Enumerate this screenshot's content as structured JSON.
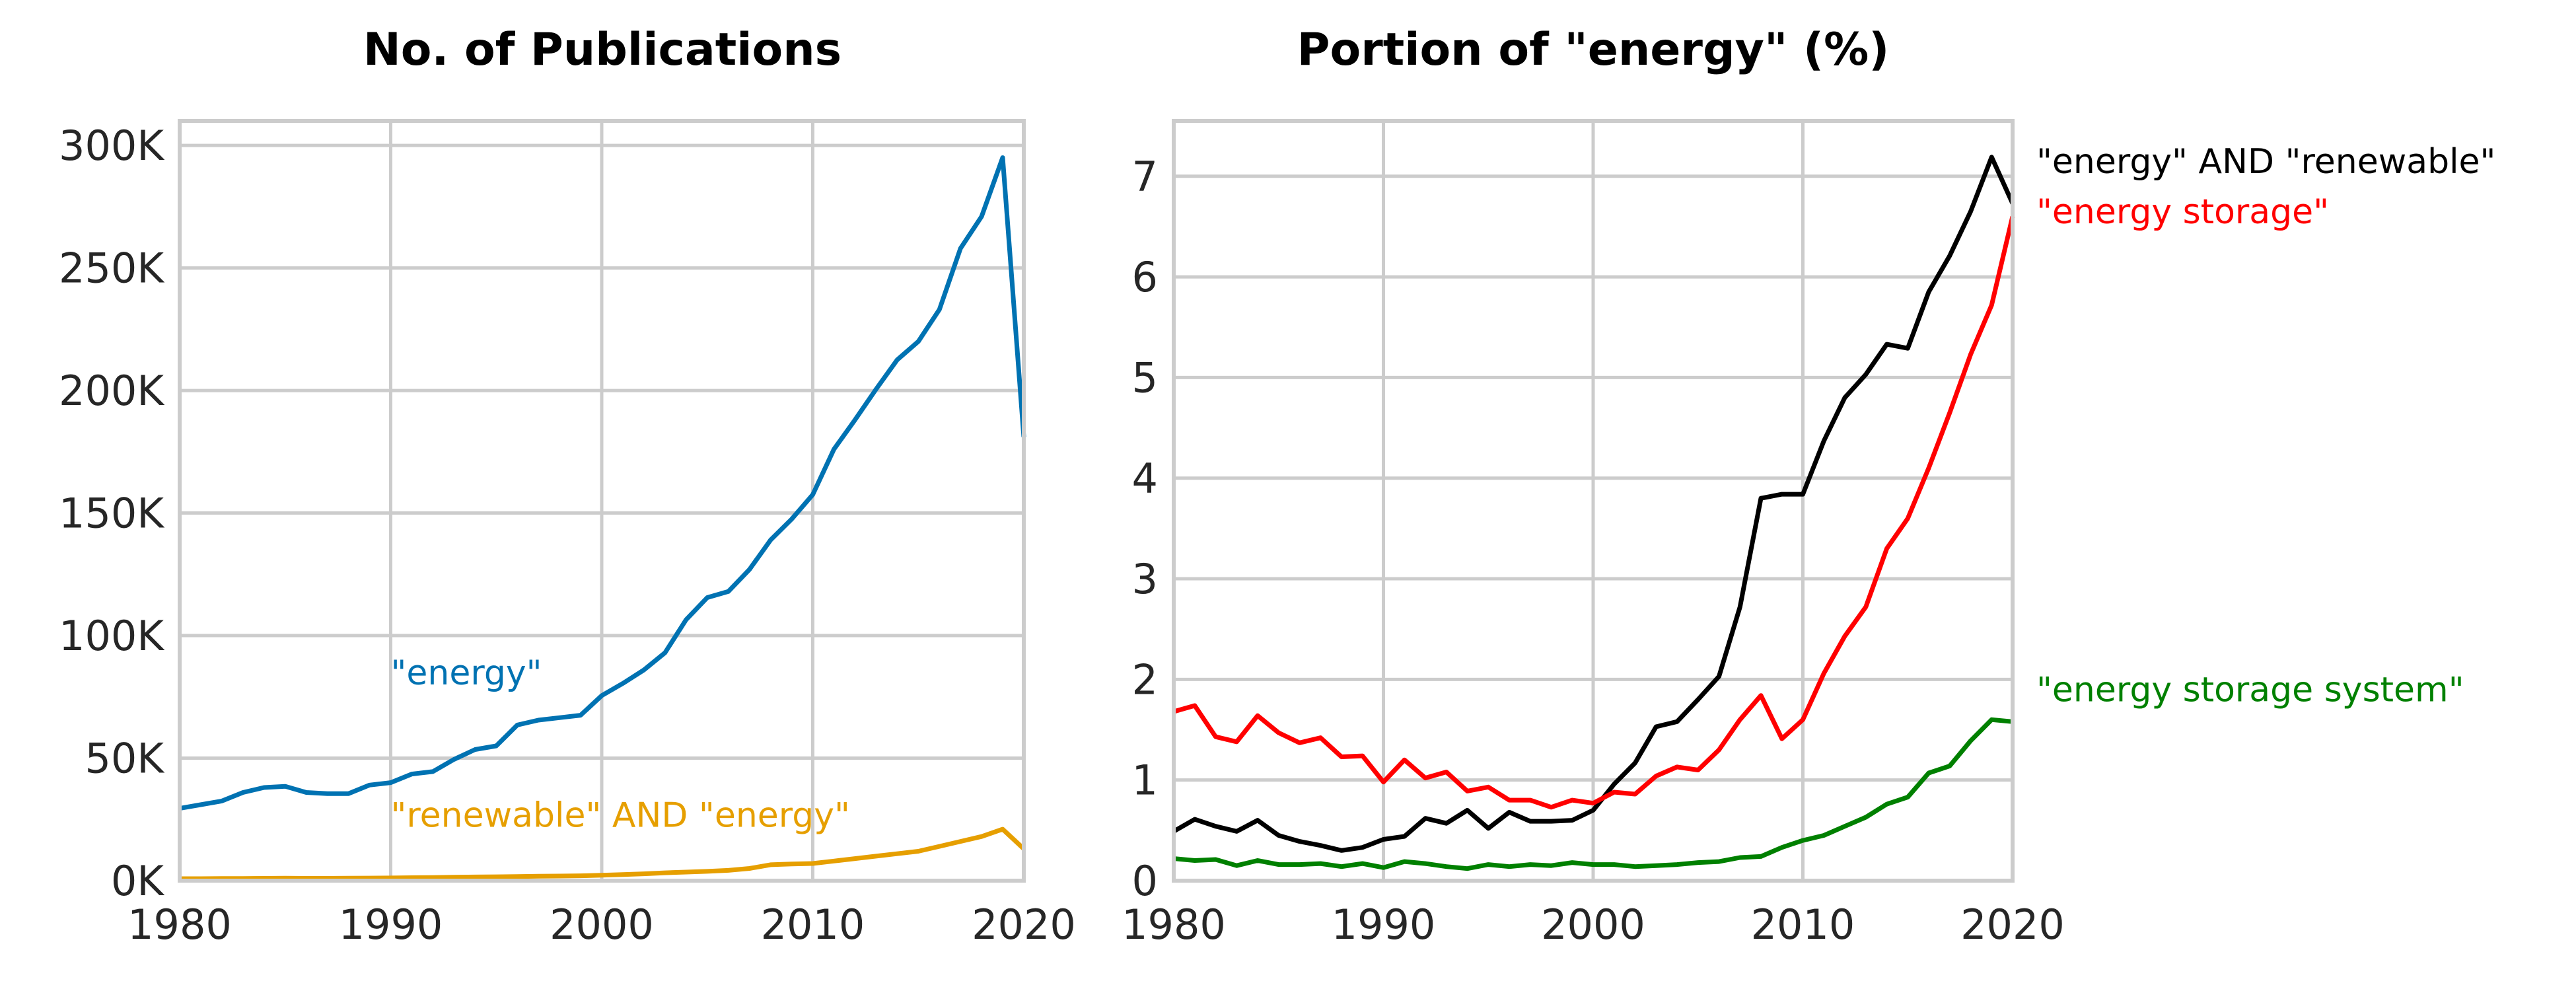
{
  "chart_data": [
    {
      "type": "line",
      "title": "No. of Publications",
      "xlabel": "",
      "ylabel": "",
      "xlim": [
        1980,
        2020
      ],
      "ylim": [
        0,
        310000
      ],
      "x_ticks": [
        1980,
        1990,
        2000,
        2010,
        2020
      ],
      "x_tick_labels": [
        "1980",
        "1990",
        "2000",
        "2010",
        "2020"
      ],
      "y_ticks": [
        0,
        50000,
        100000,
        150000,
        200000,
        250000,
        300000
      ],
      "y_tick_labels": [
        "0K",
        "50K",
        "100K",
        "150K",
        "200K",
        "250K",
        "300K"
      ],
      "grid": true,
      "x": [
        1980,
        1981,
        1982,
        1983,
        1984,
        1985,
        1986,
        1987,
        1988,
        1989,
        1990,
        1991,
        1992,
        1993,
        1994,
        1995,
        1996,
        1997,
        1998,
        1999,
        2000,
        2001,
        2002,
        2003,
        2004,
        2005,
        2006,
        2007,
        2008,
        2009,
        2010,
        2011,
        2012,
        2013,
        2014,
        2015,
        2016,
        2017,
        2018,
        2019,
        2020
      ],
      "series": [
        {
          "name": "\"energy\"",
          "color": "#0072b2",
          "values": [
            29500,
            31000,
            32500,
            36000,
            38000,
            38500,
            36000,
            35500,
            35500,
            39000,
            40000,
            43500,
            44500,
            49500,
            53500,
            55000,
            63500,
            65500,
            66500,
            67500,
            75500,
            80500,
            86000,
            93000,
            106500,
            115500,
            118000,
            127000,
            139000,
            147500,
            157500,
            176000,
            188000,
            200500,
            212500,
            220000,
            233000,
            258000,
            271000,
            295000,
            181000
          ],
          "label_x": 1990,
          "label_y": 80000
        },
        {
          "name": "\"renewable\" AND \"energy\"",
          "color": "#e69f00",
          "values": [
            800,
            800,
            850,
            900,
            950,
            1000,
            950,
            950,
            1000,
            1050,
            1100,
            1200,
            1300,
            1400,
            1500,
            1600,
            1700,
            1800,
            1900,
            2000,
            2200,
            2500,
            2800,
            3200,
            3500,
            3800,
            4200,
            5000,
            6500,
            6800,
            7000,
            8000,
            9000,
            10000,
            11000,
            12000,
            14000,
            16000,
            18000,
            21000,
            13000
          ],
          "label_x": 1990,
          "label_y": 22000
        }
      ]
    },
    {
      "type": "line",
      "title": "Portion of \"energy\" (%)",
      "xlabel": "",
      "ylabel": "",
      "xlim": [
        1980,
        2020
      ],
      "ylim": [
        0,
        7.55
      ],
      "x_ticks": [
        1980,
        1990,
        2000,
        2010,
        2020
      ],
      "x_tick_labels": [
        "1980",
        "1990",
        "2000",
        "2010",
        "2020"
      ],
      "y_ticks": [
        0,
        1,
        2,
        3,
        4,
        5,
        6,
        7
      ],
      "y_tick_labels": [
        "0",
        "1",
        "2",
        "3",
        "4",
        "5",
        "6",
        "7"
      ],
      "grid": true,
      "x": [
        1980,
        1981,
        1982,
        1983,
        1984,
        1985,
        1986,
        1987,
        1988,
        1989,
        1990,
        1991,
        1992,
        1993,
        1994,
        1995,
        1996,
        1997,
        1998,
        1999,
        2000,
        2001,
        2002,
        2003,
        2004,
        2005,
        2006,
        2007,
        2008,
        2009,
        2010,
        2011,
        2012,
        2013,
        2014,
        2015,
        2016,
        2017,
        2018,
        2019,
        2020
      ],
      "legend": "right",
      "series": [
        {
          "name": "\"energy\" AND \"renewable\"",
          "color": "#000000",
          "values": [
            0.49,
            0.61,
            0.54,
            0.49,
            0.6,
            0.45,
            0.39,
            0.35,
            0.3,
            0.33,
            0.41,
            0.44,
            0.62,
            0.57,
            0.7,
            0.52,
            0.68,
            0.59,
            0.59,
            0.6,
            0.7,
            0.96,
            1.17,
            1.53,
            1.58,
            1.8,
            2.03,
            2.72,
            3.8,
            3.84,
            3.84,
            4.37,
            4.8,
            5.03,
            5.33,
            5.29,
            5.85,
            6.21,
            6.65,
            7.19,
            6.73
          ],
          "label_y": 7.15
        },
        {
          "name": "\"energy storage\"",
          "color": "#ff0000",
          "values": [
            1.68,
            1.74,
            1.43,
            1.38,
            1.64,
            1.47,
            1.37,
            1.42,
            1.23,
            1.24,
            0.98,
            1.2,
            1.02,
            1.08,
            0.89,
            0.93,
            0.8,
            0.8,
            0.73,
            0.8,
            0.77,
            0.88,
            0.86,
            1.04,
            1.13,
            1.1,
            1.3,
            1.6,
            1.84,
            1.41,
            1.6,
            2.06,
            2.43,
            2.72,
            3.3,
            3.6,
            4.1,
            4.65,
            5.23,
            5.72,
            6.6
          ],
          "label_y": 6.65
        },
        {
          "name": "\"energy storage system\"",
          "color": "#008000",
          "values": [
            0.22,
            0.2,
            0.21,
            0.15,
            0.2,
            0.16,
            0.16,
            0.17,
            0.14,
            0.17,
            0.13,
            0.19,
            0.17,
            0.14,
            0.12,
            0.16,
            0.14,
            0.16,
            0.15,
            0.18,
            0.16,
            0.16,
            0.14,
            0.15,
            0.16,
            0.18,
            0.19,
            0.23,
            0.24,
            0.33,
            0.4,
            0.45,
            0.54,
            0.63,
            0.76,
            0.83,
            1.07,
            1.14,
            1.39,
            1.6,
            1.58
          ],
          "label_y": 1.9
        }
      ]
    }
  ]
}
